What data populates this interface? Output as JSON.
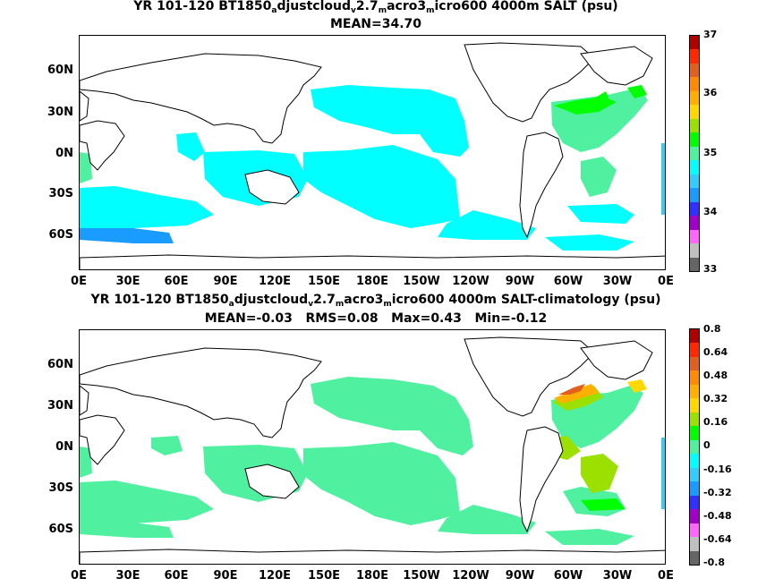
{
  "panels": [
    {
      "title_parts": [
        "YR 101-120 BT1850",
        "a",
        "djustcloud",
        "v",
        "2.7",
        "m",
        "acro3",
        "m",
        "icro600 4000m SALT (psu)"
      ],
      "subtitle": "MEAN=34.70",
      "colorbar": {
        "labels": [
          "37",
          "36",
          "35",
          "34",
          "33"
        ],
        "colors": [
          "#666666",
          "#c0c0c0",
          "#ff66ff",
          "#a000c8",
          "#3030ff",
          "#1a9bff",
          "#33ccff",
          "#00ffff",
          "#4ff0a0",
          "#00ff00",
          "#9be000",
          "#ffd800",
          "#ffb000",
          "#ff8c00",
          "#e06020",
          "#ff2a00",
          "#b00000"
        ]
      }
    },
    {
      "title_parts": [
        "YR 101-120 BT1850",
        "a",
        "djustcloud",
        "v",
        "2.7",
        "m",
        "acro3",
        "m",
        "icro600 4000m SALT-climatology (psu)"
      ],
      "subtitle": "MEAN=-0.03   RMS=0.08   Max=0.43   Min=-0.12",
      "colorbar": {
        "labels": [
          "0.8",
          "0.64",
          "0.48",
          "0.32",
          "0.16",
          "0",
          "-0.16",
          "-0.32",
          "-0.48",
          "-0.64",
          "-0.8"
        ],
        "colors": [
          "#666666",
          "#c0c0c0",
          "#ff66ff",
          "#a000c8",
          "#3030ff",
          "#1a9bff",
          "#33ccff",
          "#00ffff",
          "#4ff0a0",
          "#00ff00",
          "#9be000",
          "#ffd800",
          "#ffb000",
          "#ff8c00",
          "#e06020",
          "#ff2a00",
          "#b00000"
        ]
      }
    }
  ],
  "lat_labels": [
    "60N",
    "30N",
    "0N",
    "30S",
    "60S"
  ],
  "lon_labels": [
    "0E",
    "30E",
    "60E",
    "90E",
    "120E",
    "150E",
    "180E",
    "150W",
    "120W",
    "90W",
    "60W",
    "30W",
    "0E"
  ]
}
